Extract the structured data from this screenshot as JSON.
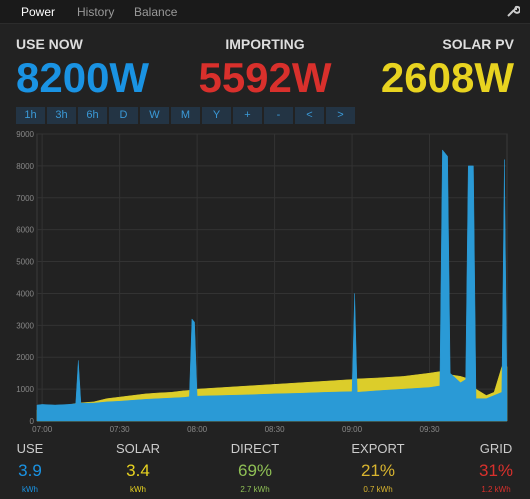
{
  "nav": {
    "items": [
      "Power",
      "History",
      "Balance"
    ]
  },
  "stats": [
    {
      "label": "USE NOW",
      "value": "8200W"
    },
    {
      "label": "IMPORTING",
      "value": "5592W"
    },
    {
      "label": "SOLAR PV",
      "value": "2608W"
    }
  ],
  "buttons": [
    "1h",
    "3h",
    "6h",
    "D",
    "W",
    "M",
    "Y",
    "+",
    "-",
    "<",
    ">"
  ],
  "chart_data": {
    "type": "area",
    "x": [
      "06:58",
      "07:00",
      "07:05",
      "07:10",
      "07:13",
      "07:14",
      "07:15",
      "07:20",
      "07:25",
      "07:30",
      "07:35",
      "07:40",
      "07:45",
      "07:50",
      "07:55",
      "07:57",
      "07:58",
      "07:59",
      "08:00",
      "08:10",
      "08:20",
      "08:30",
      "08:40",
      "08:50",
      "09:00",
      "09:01",
      "09:02",
      "09:10",
      "09:20",
      "09:30",
      "09:34",
      "09:35",
      "09:37",
      "09:38",
      "09:42",
      "09:44",
      "09:45",
      "09:47",
      "09:48",
      "09:52",
      "09:55",
      "09:58",
      "09:59",
      "10:00"
    ],
    "series": [
      {
        "name": "Solar",
        "color": "#dccd2a",
        "values": [
          350,
          400,
          450,
          500,
          550,
          560,
          570,
          600,
          700,
          750,
          800,
          850,
          880,
          900,
          950,
          960,
          970,
          980,
          1000,
          1050,
          1100,
          1150,
          1200,
          1250,
          1300,
          1310,
          1320,
          1350,
          1400,
          1500,
          1550,
          1550,
          1500,
          1450,
          1400,
          1350,
          1350,
          1300,
          1000,
          800,
          900,
          1700,
          1800,
          1700
        ]
      },
      {
        "name": "Use",
        "color": "#2a9ad6",
        "values": [
          500,
          520,
          500,
          520,
          540,
          1900,
          560,
          560,
          600,
          620,
          650,
          680,
          700,
          720,
          740,
          760,
          3200,
          3100,
          780,
          800,
          820,
          850,
          870,
          900,
          920,
          4000,
          900,
          950,
          1000,
          1050,
          1100,
          8500,
          8300,
          1500,
          1200,
          1300,
          8000,
          8000,
          700,
          700,
          800,
          900,
          8200,
          800
        ]
      }
    ],
    "xlim": [
      "06:58",
      "10:00"
    ],
    "xticks": [
      "07:00",
      "07:30",
      "08:00",
      "08:30",
      "09:00",
      "09:30"
    ],
    "ylim": [
      0,
      9000
    ],
    "yticks": [
      0,
      1000,
      2000,
      3000,
      4000,
      5000,
      6000,
      7000,
      8000,
      9000
    ],
    "grid": true
  },
  "summary": [
    {
      "label": "USE",
      "value": "3.9",
      "unit": "kWh"
    },
    {
      "label": "SOLAR",
      "value": "3.4",
      "unit": "kWh"
    },
    {
      "label": "DIRECT",
      "value": "69%",
      "unit": "2.7 kWh"
    },
    {
      "label": "EXPORT",
      "value": "21%",
      "unit": "0.7 kWh"
    },
    {
      "label": "GRID",
      "value": "31%",
      "unit": "1.2 kWh"
    }
  ]
}
